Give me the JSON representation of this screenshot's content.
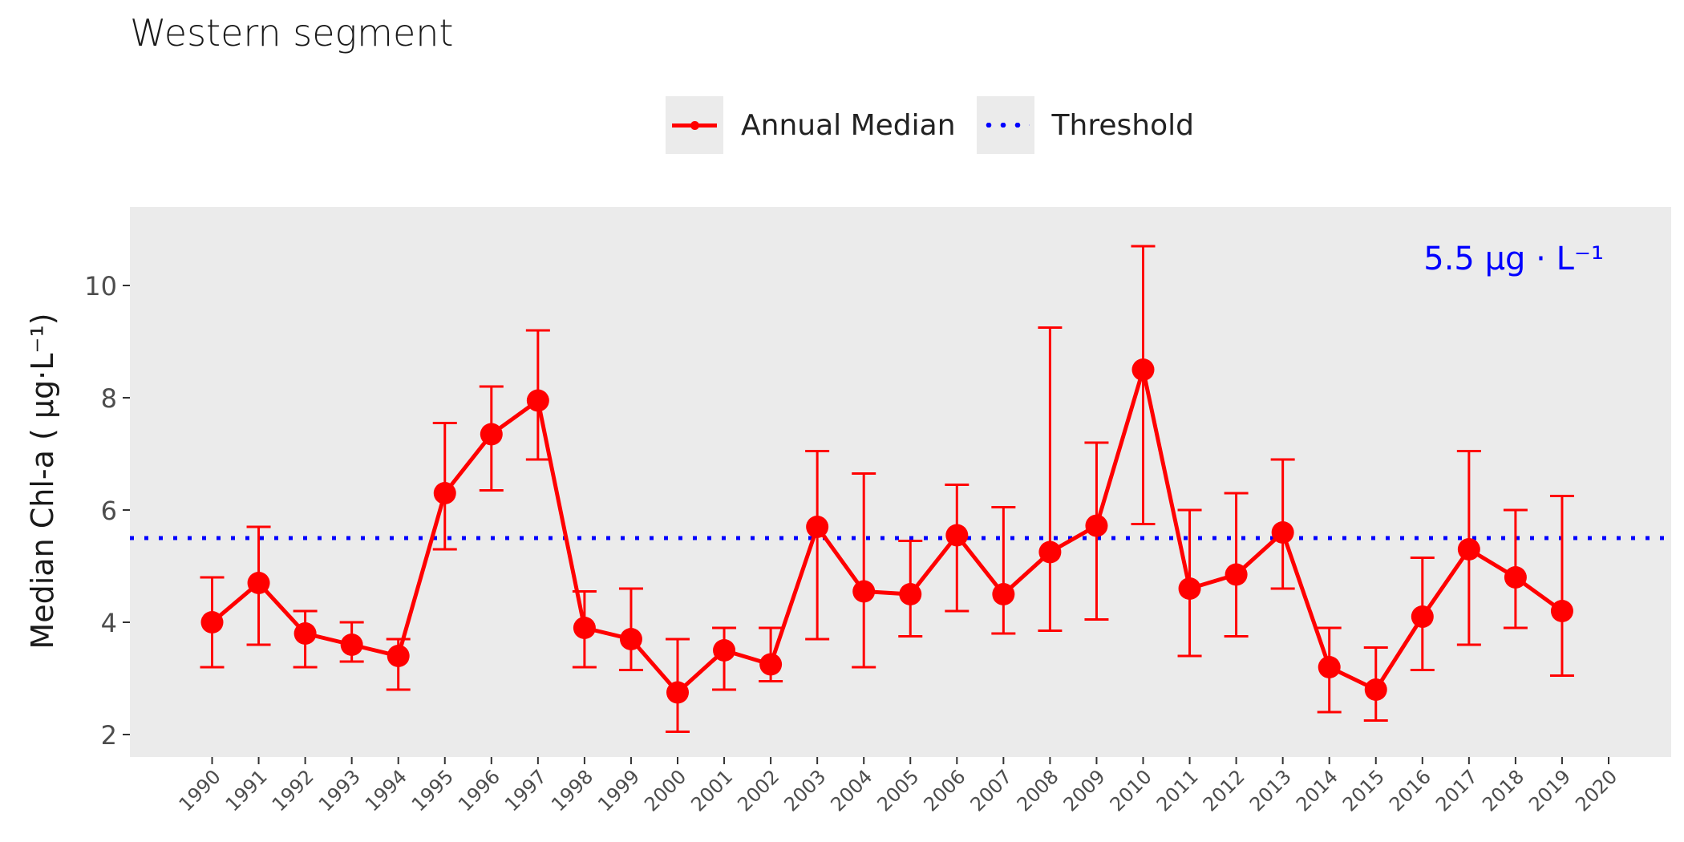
{
  "chart_data": {
    "type": "line",
    "title": "Western segment",
    "ylabel": "Median Chl-a ( μg·L⁻¹)",
    "xlabel": "",
    "ylim": [
      1.6,
      11.4
    ],
    "yticks": [
      2,
      4,
      6,
      8,
      10
    ],
    "grid": false,
    "legend_position": "top",
    "categories": [
      "1990",
      "1991",
      "1992",
      "1993",
      "1994",
      "1995",
      "1996",
      "1997",
      "1998",
      "1999",
      "2000",
      "2001",
      "2002",
      "2003",
      "2004",
      "2005",
      "2006",
      "2007",
      "2008",
      "2009",
      "2010",
      "2011",
      "2012",
      "2013",
      "2014",
      "2015",
      "2016",
      "2017",
      "2018",
      "2019",
      "2020"
    ],
    "series": [
      {
        "name": "Annual Median",
        "color": "#ff0000",
        "values": [
          4.0,
          4.7,
          3.8,
          3.6,
          3.4,
          6.3,
          7.35,
          7.95,
          3.9,
          3.7,
          2.75,
          3.5,
          3.25,
          5.7,
          4.55,
          4.5,
          5.55,
          4.5,
          5.25,
          5.72,
          8.5,
          4.6,
          4.85,
          5.6,
          3.2,
          2.8,
          4.1,
          5.3,
          4.8,
          4.2,
          null
        ],
        "lower": [
          3.2,
          3.6,
          3.2,
          3.3,
          2.8,
          5.3,
          6.35,
          6.9,
          3.2,
          3.15,
          2.05,
          2.8,
          2.95,
          3.7,
          3.2,
          3.75,
          4.2,
          3.8,
          3.85,
          4.05,
          5.75,
          3.4,
          3.75,
          4.6,
          2.4,
          2.25,
          3.15,
          3.6,
          3.9,
          3.05,
          null
        ],
        "upper": [
          4.8,
          5.7,
          4.2,
          4.0,
          3.7,
          7.55,
          8.2,
          9.2,
          4.55,
          4.6,
          3.7,
          3.9,
          3.9,
          7.05,
          6.65,
          5.45,
          6.45,
          6.05,
          9.25,
          7.2,
          10.7,
          6.0,
          6.3,
          6.9,
          3.9,
          3.55,
          5.15,
          7.05,
          6.0,
          6.25,
          null
        ]
      }
    ],
    "threshold": {
      "name": "Threshold",
      "value": 5.5,
      "color": "#0000ff",
      "label": "5.5 μg · L⁻¹"
    }
  },
  "legend": {
    "items": [
      "Annual Median",
      "Threshold"
    ]
  }
}
